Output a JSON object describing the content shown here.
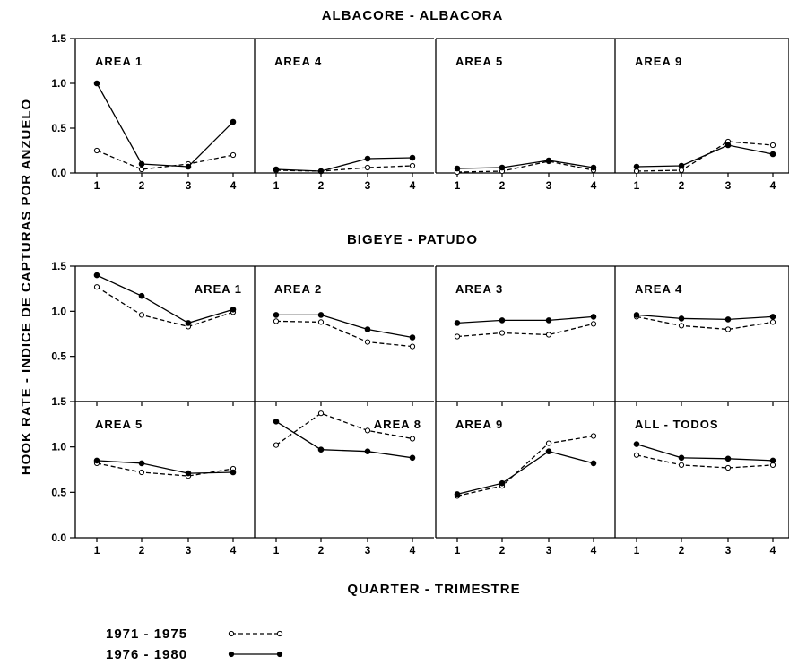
{
  "figure": {
    "ylabel": "HOOK RATE - INDICE DE CAPTURAS POR ANZUELO",
    "xlabel": "QUARTER - TRIMESTRE",
    "legend": [
      {
        "label": "1971 - 1975",
        "style": "dashed-open"
      },
      {
        "label": "1976 - 1980",
        "style": "solid-filled"
      }
    ]
  },
  "chart_data": [
    {
      "type": "line",
      "title": "ALBACORE - ALBACORA",
      "ylim": [
        0,
        1.5
      ],
      "yticks": [
        "0.0",
        "0.5",
        "1.0",
        "1.5"
      ],
      "x": [
        1,
        2,
        3,
        4
      ],
      "xticks": [
        "1",
        "2",
        "3",
        "4"
      ],
      "panels": [
        {
          "label": "AREA 1",
          "label_pos": "top-left",
          "series": [
            {
              "name": "1971 - 1975",
              "values": [
                0.25,
                0.04,
                0.1,
                0.2
              ]
            },
            {
              "name": "1976 - 1980",
              "values": [
                1.0,
                0.1,
                0.07,
                0.57
              ]
            }
          ]
        },
        {
          "label": "AREA 4",
          "label_pos": "top-left",
          "series": [
            {
              "name": "1971 - 1975",
              "values": [
                0.03,
                0.02,
                0.06,
                0.08
              ]
            },
            {
              "name": "1976 - 1980",
              "values": [
                0.04,
                0.02,
                0.16,
                0.17
              ]
            }
          ]
        },
        {
          "label": "AREA 5",
          "label_pos": "top-left",
          "series": [
            {
              "name": "1971 - 1975",
              "values": [
                0.01,
                0.02,
                0.13,
                0.03
              ]
            },
            {
              "name": "1976 - 1980",
              "values": [
                0.05,
                0.06,
                0.14,
                0.06
              ]
            }
          ]
        },
        {
          "label": "AREA 9",
          "label_pos": "top-left",
          "series": [
            {
              "name": "1971 - 1975",
              "values": [
                0.02,
                0.03,
                0.35,
                0.31
              ]
            },
            {
              "name": "1976 - 1980",
              "values": [
                0.07,
                0.08,
                0.31,
                0.21
              ]
            }
          ]
        }
      ]
    },
    {
      "type": "line",
      "title": "BIGEYE - PATUDO",
      "ylim": [
        0,
        1.5
      ],
      "yticks": [
        "0.5",
        "1.0",
        "1.5"
      ],
      "x": [
        1,
        2,
        3,
        4
      ],
      "panels": [
        {
          "label": "AREA 1",
          "label_pos": "top-right",
          "series": [
            {
              "name": "1971 - 1975",
              "values": [
                1.27,
                0.96,
                0.83,
                0.99
              ]
            },
            {
              "name": "1976 - 1980",
              "values": [
                1.4,
                1.17,
                0.87,
                1.02
              ]
            }
          ]
        },
        {
          "label": "AREA 2",
          "label_pos": "top-left",
          "series": [
            {
              "name": "1971 - 1975",
              "values": [
                0.89,
                0.88,
                0.66,
                0.61
              ]
            },
            {
              "name": "1976 - 1980",
              "values": [
                0.96,
                0.96,
                0.8,
                0.71
              ]
            }
          ]
        },
        {
          "label": "AREA 3",
          "label_pos": "top-left",
          "series": [
            {
              "name": "1971 - 1975",
              "values": [
                0.72,
                0.76,
                0.74,
                0.86
              ]
            },
            {
              "name": "1976 - 1980",
              "values": [
                0.87,
                0.9,
                0.9,
                0.94
              ]
            }
          ]
        },
        {
          "label": "AREA 4",
          "label_pos": "top-left",
          "series": [
            {
              "name": "1971 - 1975",
              "values": [
                0.94,
                0.84,
                0.8,
                0.88
              ]
            },
            {
              "name": "1976 - 1980",
              "values": [
                0.96,
                0.92,
                0.91,
                0.94
              ]
            }
          ]
        }
      ]
    },
    {
      "type": "line",
      "ylim": [
        0,
        1.5
      ],
      "yticks": [
        "0.0",
        "0.5",
        "1.0",
        "1.5"
      ],
      "x": [
        1,
        2,
        3,
        4
      ],
      "xticks": [
        "1",
        "2",
        "3",
        "4"
      ],
      "panels": [
        {
          "label": "AREA 5",
          "label_pos": "top-left",
          "series": [
            {
              "name": "1971 - 1975",
              "values": [
                0.82,
                0.72,
                0.68,
                0.76
              ]
            },
            {
              "name": "1976 - 1980",
              "values": [
                0.85,
                0.82,
                0.71,
                0.72
              ]
            }
          ]
        },
        {
          "label": "AREA 8",
          "label_pos": "top-right",
          "series": [
            {
              "name": "1971 - 1975",
              "values": [
                1.02,
                1.37,
                1.18,
                1.09
              ]
            },
            {
              "name": "1976 - 1980",
              "values": [
                1.28,
                0.97,
                0.95,
                0.88
              ]
            }
          ]
        },
        {
          "label": "AREA 9",
          "label_pos": "top-left",
          "series": [
            {
              "name": "1971 - 1975",
              "values": [
                0.46,
                0.57,
                1.04,
                1.12
              ]
            },
            {
              "name": "1976 - 1980",
              "values": [
                0.48,
                0.6,
                0.95,
                0.82
              ]
            }
          ]
        },
        {
          "label": "ALL - TODOS",
          "label_pos": "top-left",
          "series": [
            {
              "name": "1971 - 1975",
              "values": [
                0.91,
                0.8,
                0.77,
                0.8
              ]
            },
            {
              "name": "1976 - 1980",
              "values": [
                1.03,
                0.88,
                0.87,
                0.85
              ]
            }
          ]
        }
      ]
    }
  ]
}
